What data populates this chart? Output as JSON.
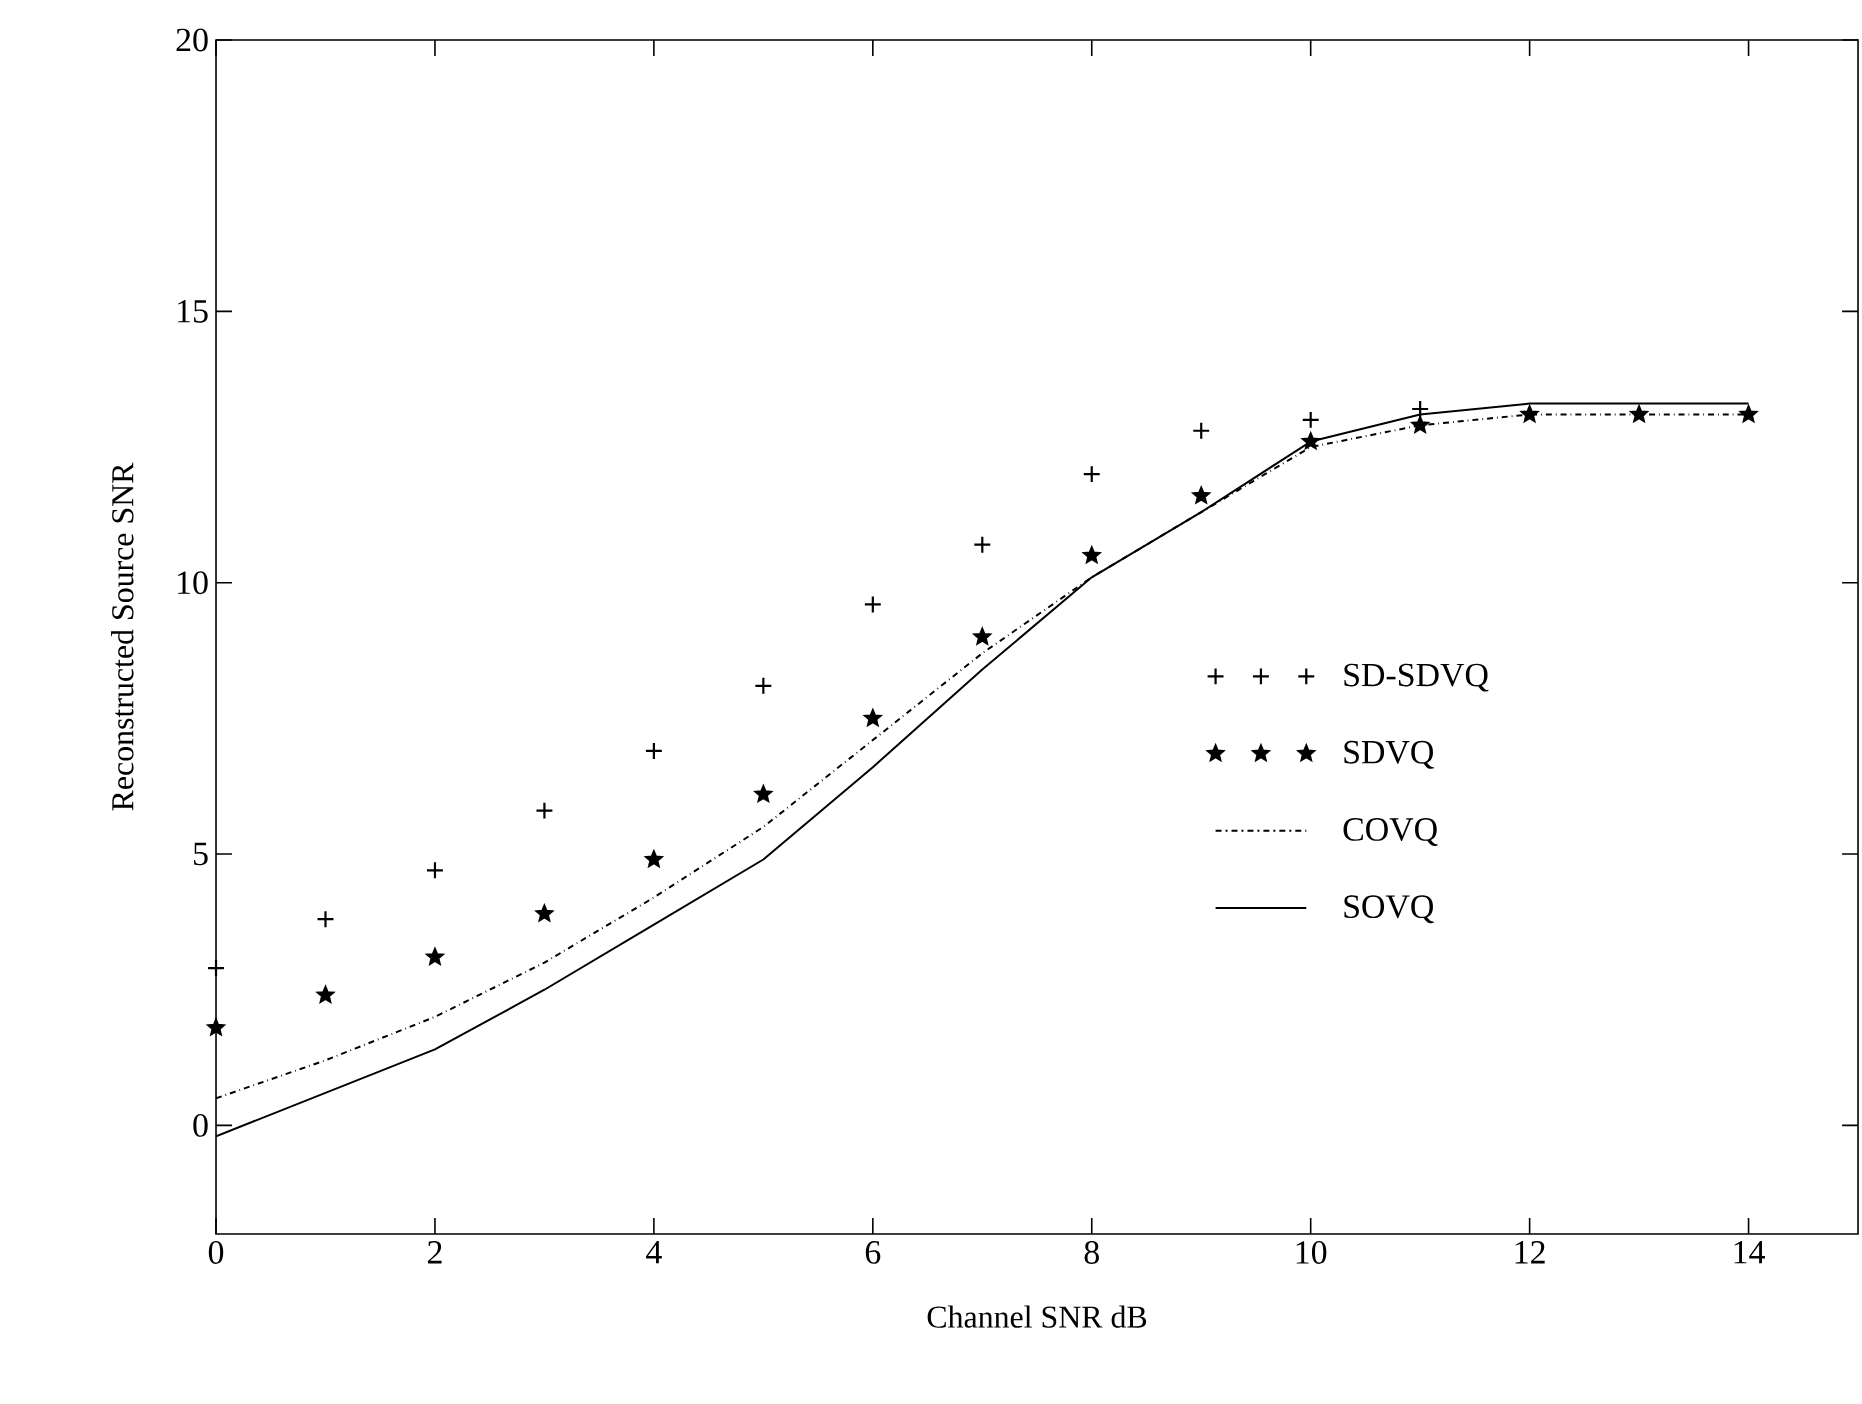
{
  "chart_data": {
    "type": "line",
    "xlabel": "Channel SNR dB",
    "ylabel": "Reconstructed Source SNR",
    "x": [
      0,
      1,
      2,
      3,
      4,
      5,
      6,
      7,
      8,
      9,
      10,
      11,
      12,
      13,
      14
    ],
    "xlim": [
      0,
      15
    ],
    "xticks": [
      0,
      2,
      4,
      6,
      8,
      10,
      12,
      14
    ],
    "ylim": [
      -2,
      20
    ],
    "yticks": [
      0,
      5,
      10,
      15,
      20
    ],
    "grid": false,
    "legend": "right",
    "series": [
      {
        "name": "SD-SDVQ",
        "type": "scatter",
        "marker": "cross",
        "color": "#000000",
        "values": [
          2.9,
          3.8,
          4.7,
          5.8,
          6.9,
          8.1,
          9.6,
          10.7,
          12.0,
          12.8,
          13.0,
          13.2,
          null,
          null,
          null
        ]
      },
      {
        "name": "SDVQ",
        "type": "scatter",
        "marker": "star",
        "color": "#000000",
        "values": [
          1.8,
          2.4,
          3.1,
          3.9,
          4.9,
          6.1,
          7.5,
          9.0,
          10.5,
          11.6,
          12.6,
          12.9,
          13.1,
          13.1,
          13.1
        ]
      },
      {
        "name": "COVQ",
        "line_style": "dashdot",
        "color": "#000000",
        "values": [
          0.5,
          1.2,
          2.0,
          3.0,
          4.2,
          5.5,
          7.1,
          8.7,
          10.1,
          11.3,
          12.5,
          12.9,
          13.1,
          13.1,
          13.1
        ]
      },
      {
        "name": "SOVQ",
        "line_style": "solid",
        "color": "#000000",
        "values": [
          -0.2,
          0.6,
          1.4,
          2.5,
          3.7,
          4.9,
          6.6,
          8.4,
          10.1,
          11.3,
          12.6,
          13.1,
          13.3,
          13.3,
          13.3
        ]
      }
    ]
  }
}
